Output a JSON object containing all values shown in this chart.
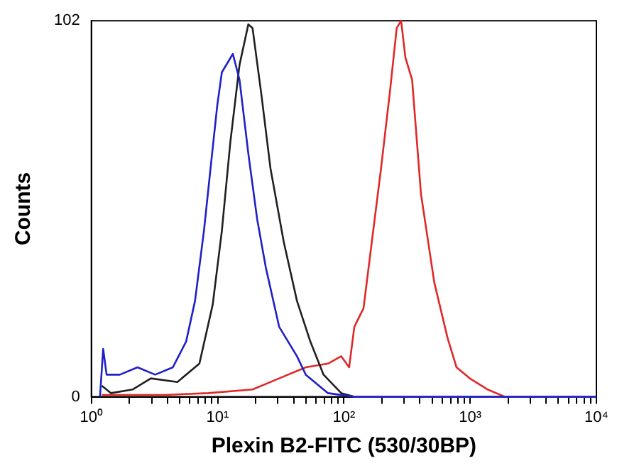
{
  "chart_data": {
    "type": "line",
    "xlabel": "Plexin B2-FITC (530/30BP)",
    "ylabel": "Counts",
    "log": "x",
    "marker": "none",
    "grid": false,
    "legend": false,
    "xlim": [
      1,
      10000
    ],
    "ylim": [
      0,
      102
    ],
    "xticks": [
      {
        "value": 1,
        "label": "10⁰"
      },
      {
        "value": 2,
        "label": null
      },
      {
        "value": 3,
        "label": null
      },
      {
        "value": 4,
        "label": null
      },
      {
        "value": 5,
        "label": null
      },
      {
        "value": 6,
        "label": null
      },
      {
        "value": 7,
        "label": null
      },
      {
        "value": 8,
        "label": null
      },
      {
        "value": 9,
        "label": null
      },
      {
        "value": 10,
        "label": "10¹"
      },
      {
        "value": 20,
        "label": null
      },
      {
        "value": 30,
        "label": null
      },
      {
        "value": 40,
        "label": null
      },
      {
        "value": 50,
        "label": null
      },
      {
        "value": 60,
        "label": null
      },
      {
        "value": 70,
        "label": null
      },
      {
        "value": 80,
        "label": null
      },
      {
        "value": 90,
        "label": null
      },
      {
        "value": 100,
        "label": "10²"
      },
      {
        "value": 200,
        "label": null
      },
      {
        "value": 300,
        "label": null
      },
      {
        "value": 400,
        "label": null
      },
      {
        "value": 500,
        "label": null
      },
      {
        "value": 600,
        "label": null
      },
      {
        "value": 700,
        "label": null
      },
      {
        "value": 800,
        "label": null
      },
      {
        "value": 900,
        "label": null
      },
      {
        "value": 1000,
        "label": "10³"
      },
      {
        "value": 2000,
        "label": null
      },
      {
        "value": 3000,
        "label": null
      },
      {
        "value": 4000,
        "label": null
      },
      {
        "value": 5000,
        "label": null
      },
      {
        "value": 6000,
        "label": null
      },
      {
        "value": 7000,
        "label": null
      },
      {
        "value": 8000,
        "label": null
      },
      {
        "value": 9000,
        "label": null
      },
      {
        "value": 10000,
        "label": "10⁴"
      }
    ],
    "yticks": [
      0,
      102
    ],
    "series": [
      {
        "color": "#2020c8",
        "x": [
          1.17,
          1.24,
          1.32,
          1.68,
          2.32,
          3.2,
          4.42,
          5.63,
          6.62,
          7.79,
          8.79,
          9.93,
          10.8,
          13.2,
          14.9,
          17.5,
          20.6,
          24.1,
          30.7,
          42.5,
          49.9,
          74.8,
          121,
          10000
        ],
        "values": [
          0,
          13,
          6,
          6,
          8,
          6,
          8,
          15,
          26,
          45,
          62,
          79,
          88,
          93,
          86,
          66,
          48,
          35,
          19,
          11,
          6,
          1,
          0,
          0
        ]
      },
      {
        "color": "#202020",
        "x": [
          1.21,
          1.43,
          2.13,
          2.96,
          4.8,
          7.17,
          9.14,
          10.8,
          12.6,
          14.9,
          17.5,
          18.9,
          22.2,
          26.2,
          33.4,
          42.5,
          54.2,
          69,
          95.3,
          121
        ],
        "values": [
          3,
          1,
          2,
          5,
          4,
          9,
          25,
          45,
          69,
          90,
          101,
          100,
          82,
          62,
          42,
          26,
          15,
          6,
          1,
          0
        ]
      },
      {
        "color": "#e02828",
        "x": [
          1.21,
          3.77,
          8.44,
          18.9,
          30.7,
          49.9,
          74.8,
          95.3,
          110,
          121,
          143,
          175,
          197,
          232,
          262,
          284,
          307,
          347,
          408,
          520,
          662,
          780,
          993,
          1371,
          1892
        ],
        "values": [
          0.5,
          0.5,
          1,
          2,
          5,
          8,
          9,
          11,
          8,
          19,
          24,
          48,
          62,
          83,
          100,
          102,
          92,
          86,
          55,
          31,
          16,
          8,
          5,
          2,
          0
        ]
      }
    ]
  }
}
